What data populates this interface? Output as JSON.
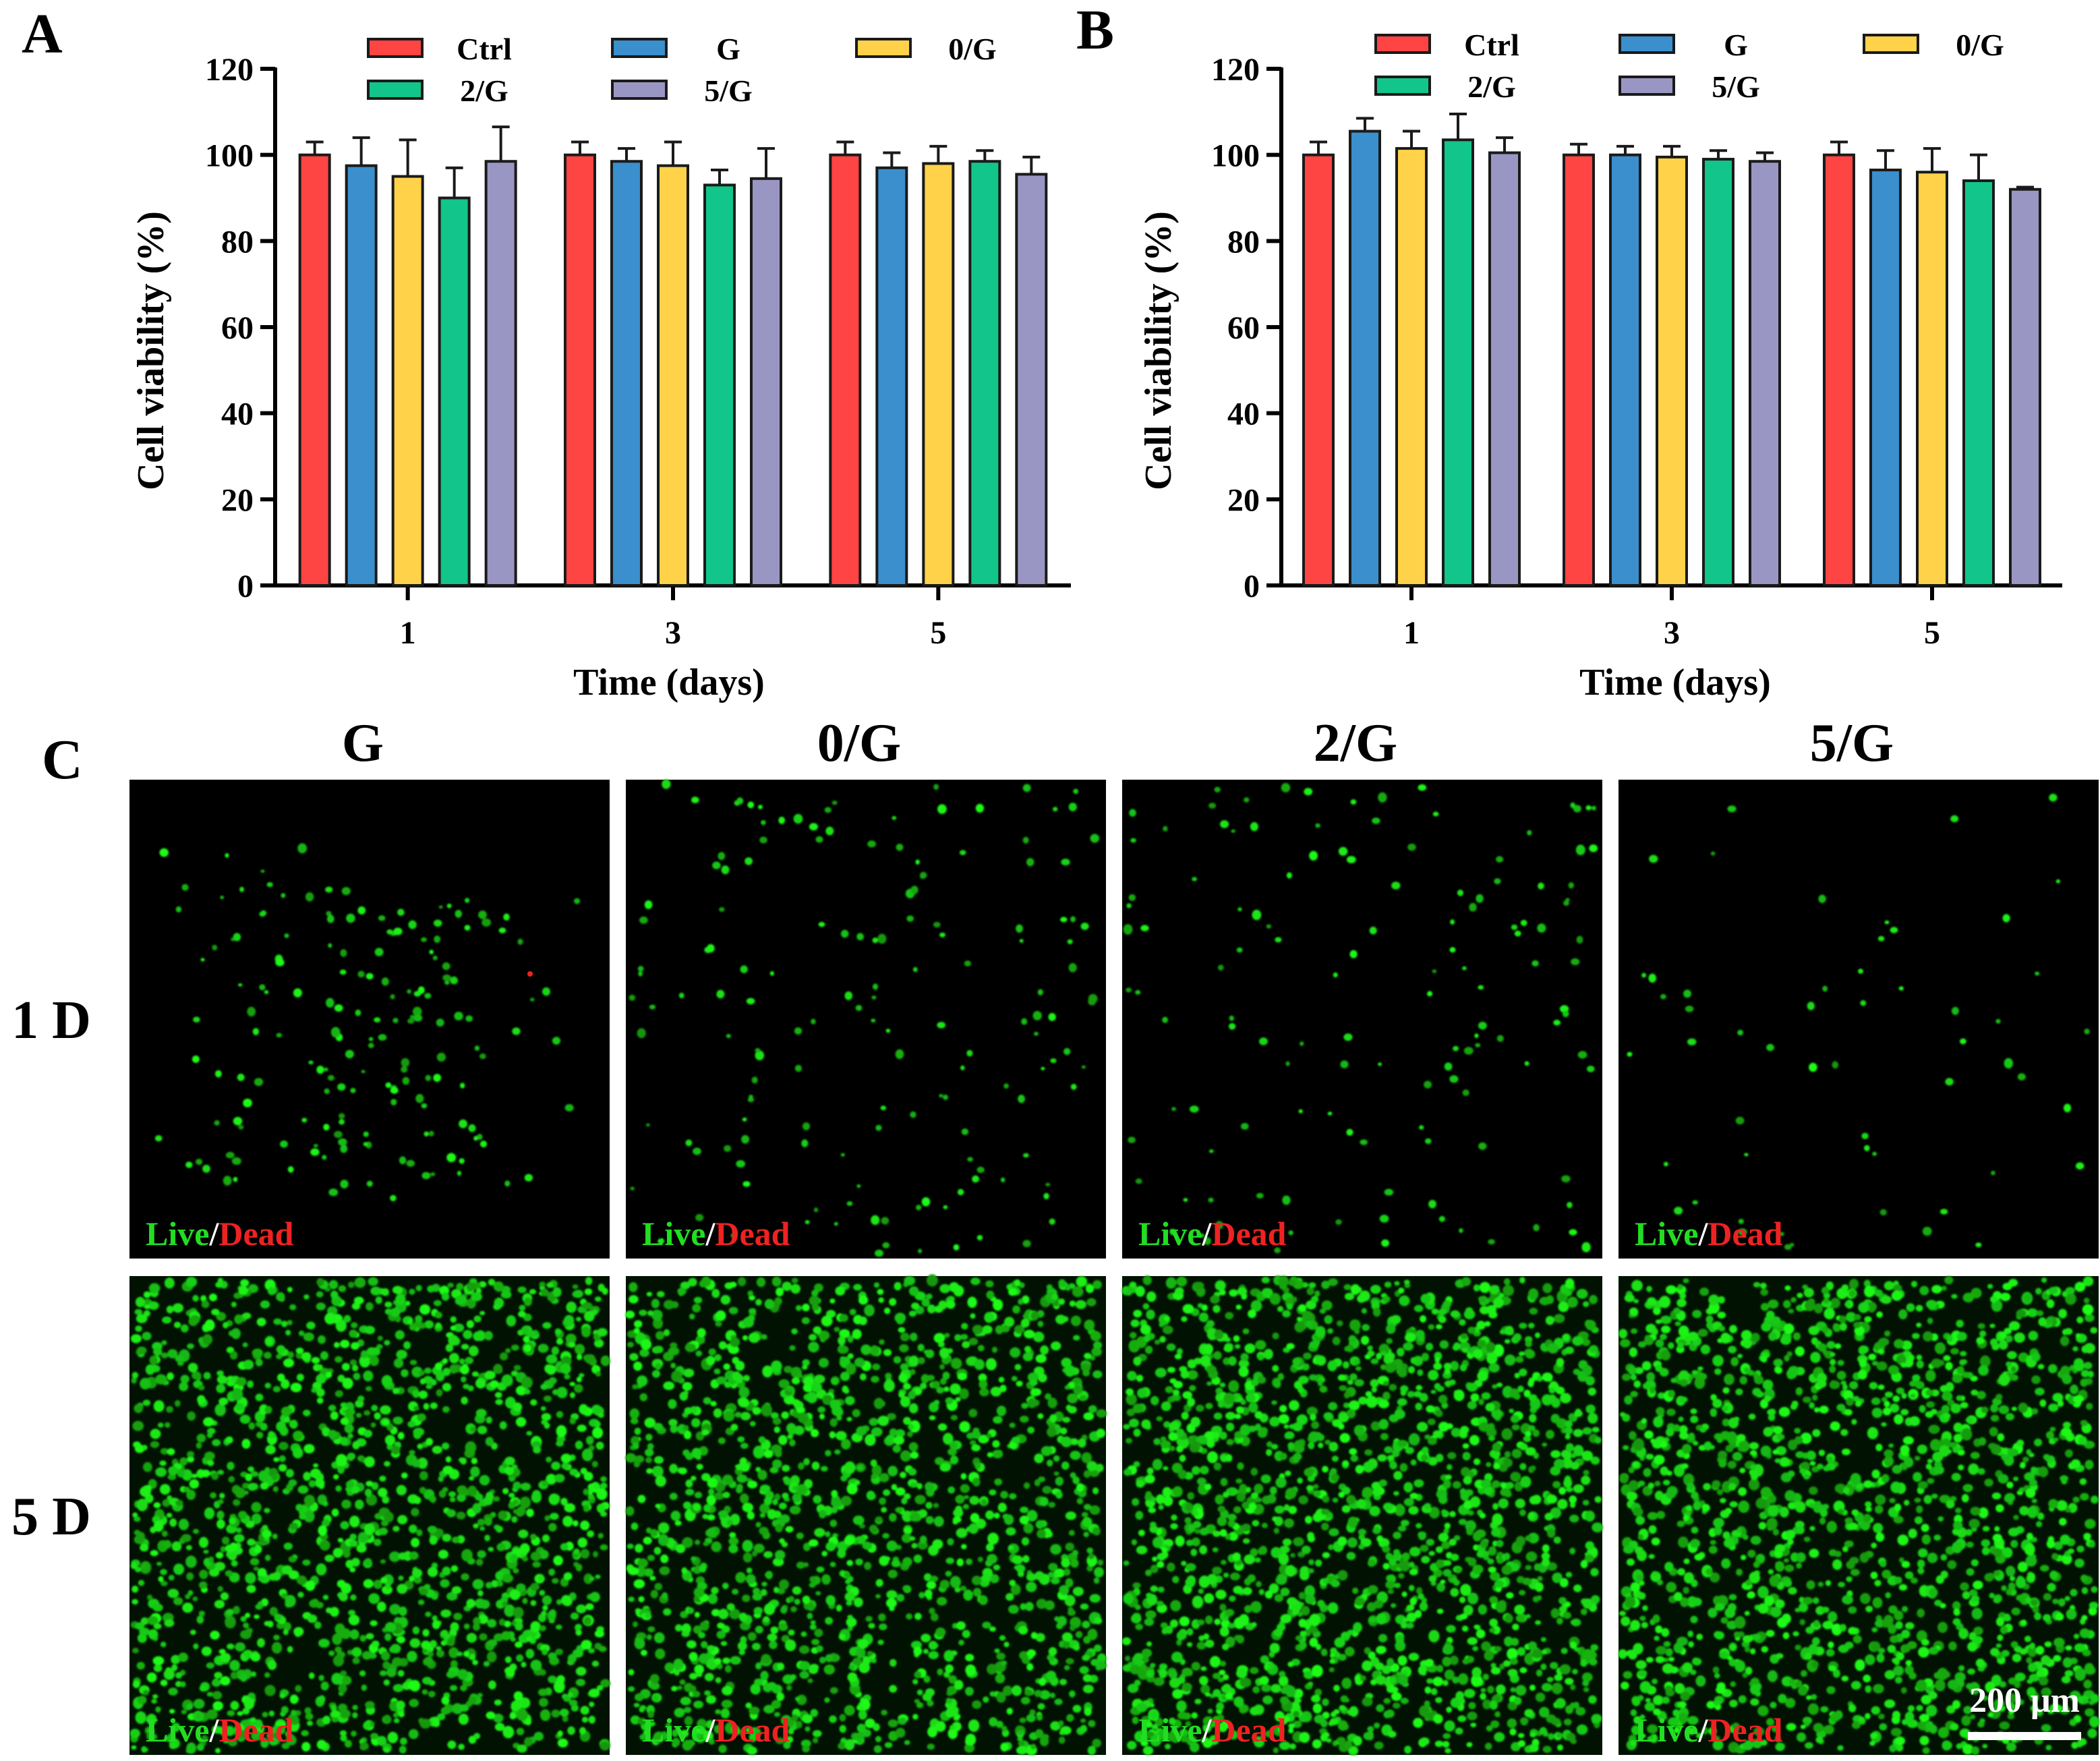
{
  "colors": {
    "Ctrl": "#ff4444",
    "G": "#3a8fcc",
    "0/G": "#ffd24a",
    "2/G": "#12c58a",
    "5/G": "#9a96c4",
    "live": "#22dd22",
    "dead": "#ee2222"
  },
  "chart_data": [
    {
      "panel": "A",
      "type": "bar",
      "xlabel": "Time (days)",
      "ylabel": "Cell viability (%)",
      "ylim": [
        0,
        120
      ],
      "yticks": [
        "0",
        "20",
        "40",
        "60",
        "80",
        "100",
        "120"
      ],
      "categories": [
        "1",
        "3",
        "5"
      ],
      "legend_position": "top",
      "error_bars": "upper-only",
      "series": [
        {
          "name": "Ctrl",
          "values": [
            100,
            100,
            100
          ],
          "errors": [
            3,
            3,
            3
          ]
        },
        {
          "name": "G",
          "values": [
            97.5,
            98.5,
            97
          ],
          "errors": [
            6.5,
            3,
            3.5
          ]
        },
        {
          "name": "0/G",
          "values": [
            95,
            97.5,
            98
          ],
          "errors": [
            8.5,
            5.5,
            4
          ]
        },
        {
          "name": "2/G",
          "values": [
            90,
            93,
            98.5
          ],
          "errors": [
            7,
            3.5,
            2.5
          ]
        },
        {
          "name": "5/G",
          "values": [
            98.5,
            94.5,
            95.5
          ],
          "errors": [
            8,
            7,
            4
          ]
        }
      ]
    },
    {
      "panel": "B",
      "type": "bar",
      "xlabel": "Time (days)",
      "ylabel": "Cell viability (%)",
      "ylim": [
        0,
        120
      ],
      "yticks": [
        "0",
        "20",
        "40",
        "60",
        "80",
        "100",
        "120"
      ],
      "categories": [
        "1",
        "3",
        "5"
      ],
      "legend_position": "top",
      "error_bars": "upper-only",
      "series": [
        {
          "name": "Ctrl",
          "values": [
            100,
            100,
            100
          ],
          "errors": [
            3,
            2.5,
            3
          ]
        },
        {
          "name": "G",
          "values": [
            105.5,
            100,
            96.5
          ],
          "errors": [
            3,
            2,
            4.5
          ]
        },
        {
          "name": "0/G",
          "values": [
            101.5,
            99.5,
            96
          ],
          "errors": [
            4,
            2.5,
            5.5
          ]
        },
        {
          "name": "2/G",
          "values": [
            103.5,
            99,
            94
          ],
          "errors": [
            6,
            2,
            6
          ]
        },
        {
          "name": "5/G",
          "values": [
            100.5,
            98.5,
            92
          ],
          "errors": [
            3.5,
            2,
            0.5
          ]
        }
      ]
    }
  ],
  "micrographs": {
    "panel": "C",
    "columns": [
      "G",
      "0/G",
      "2/G",
      "5/G"
    ],
    "rows": [
      "1 D",
      "5 D"
    ],
    "label_live": "Live",
    "label_slash": "/",
    "label_dead": "Dead",
    "scale_bar": "200 μm"
  }
}
